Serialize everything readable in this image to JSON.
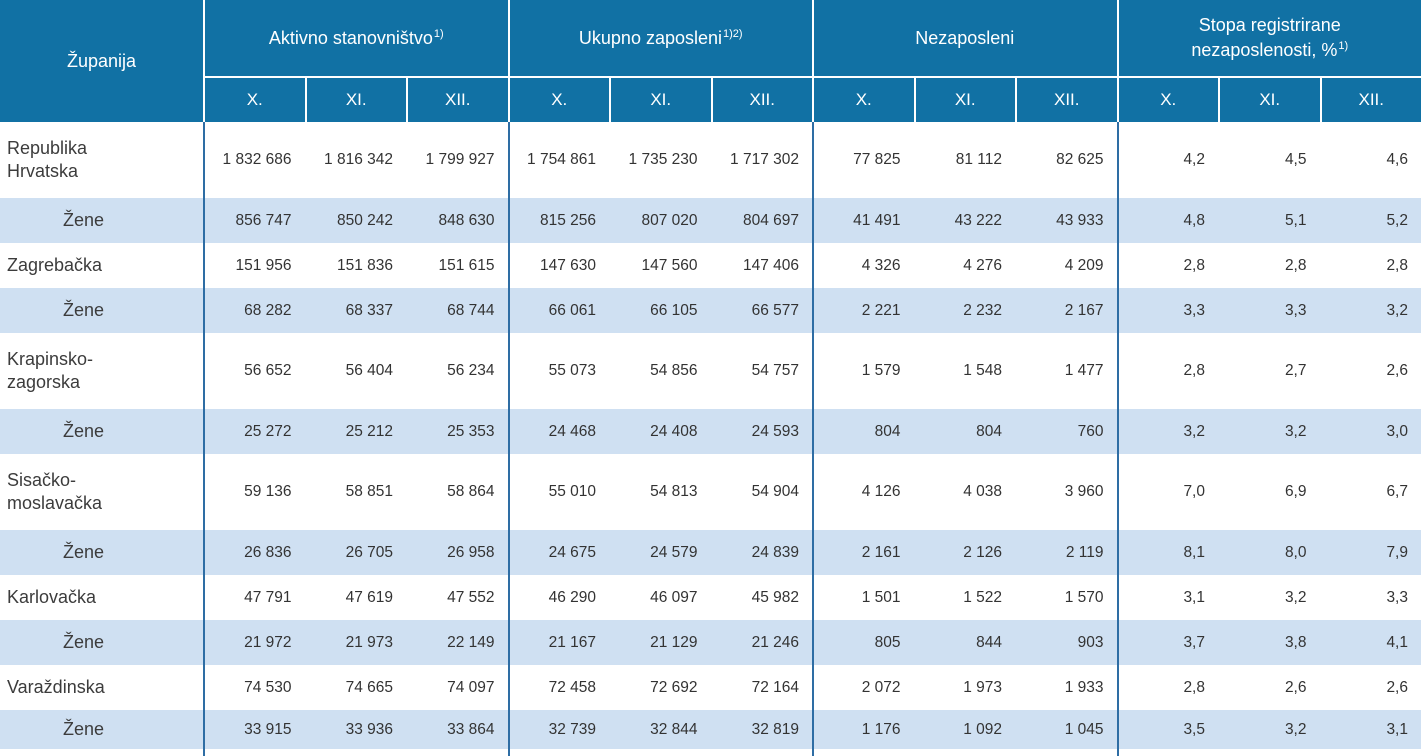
{
  "colors": {
    "header_blue": "#1171a4",
    "highlight_row_blue": "#cfe0f2",
    "grid_line_blue": "#2e6da4",
    "header_text": "#ffffff",
    "body_text": "#3c3c3c"
  },
  "table": {
    "corner_label": "Županija",
    "column_groups": [
      {
        "label": "Aktivno stanovništvo",
        "sup": "1)"
      },
      {
        "label": "Ukupno zaposleni",
        "sup": "1)2)"
      },
      {
        "label": "Nezaposleni",
        "sup": ""
      },
      {
        "label": "Stopa registrirane nezaposlenosti, %",
        "sup": "1)"
      }
    ],
    "month_headers": [
      "X.",
      "XI.",
      "XII.",
      "X.",
      "XI.",
      "XII.",
      "X.",
      "XI.",
      "XII.",
      "X.",
      "XI.",
      "XII."
    ],
    "rows": [
      {
        "label_lines": [
          "Republika",
          "Hrvatska"
        ],
        "indent": false,
        "values": [
          "1 832 686",
          "1 816 342",
          "1 799 927",
          "1 754 861",
          "1 735 230",
          "1 717 302",
          "77 825",
          "81 112",
          "82 625",
          "4,2",
          "4,5",
          "4,6"
        ]
      },
      {
        "label_lines": [
          "Žene"
        ],
        "indent": true,
        "values": [
          "856 747",
          "850 242",
          "848 630",
          "815 256",
          "807 020",
          "804 697",
          "41 491",
          "43 222",
          "43 933",
          "4,8",
          "5,1",
          "5,2"
        ]
      },
      {
        "label_lines": [
          "Zagrebačka"
        ],
        "indent": false,
        "values": [
          "151 956",
          "151 836",
          "151 615",
          "147 630",
          "147 560",
          "147 406",
          "4 326",
          "4 276",
          "4 209",
          "2,8",
          "2,8",
          "2,8"
        ]
      },
      {
        "label_lines": [
          "Žene"
        ],
        "indent": true,
        "values": [
          "68 282",
          "68 337",
          "68 744",
          "66 061",
          "66 105",
          "66 577",
          "2 221",
          "2 232",
          "2 167",
          "3,3",
          "3,3",
          "3,2"
        ]
      },
      {
        "label_lines": [
          "Krapinsko-",
          "zagorska"
        ],
        "indent": false,
        "values": [
          "56 652",
          "56 404",
          "56 234",
          "55 073",
          "54 856",
          "54 757",
          "1 579",
          "1 548",
          "1 477",
          "2,8",
          "2,7",
          "2,6"
        ]
      },
      {
        "label_lines": [
          "Žene"
        ],
        "indent": true,
        "values": [
          "25 272",
          "25 212",
          "25 353",
          "24 468",
          "24 408",
          "24 593",
          "804",
          "804",
          "760",
          "3,2",
          "3,2",
          "3,0"
        ]
      },
      {
        "label_lines": [
          "Sisačko-",
          "moslavačka"
        ],
        "indent": false,
        "values": [
          "59 136",
          "58 851",
          "58 864",
          "55 010",
          "54 813",
          "54 904",
          "4 126",
          "4 038",
          "3 960",
          "7,0",
          "6,9",
          "6,7"
        ]
      },
      {
        "label_lines": [
          "Žene"
        ],
        "indent": true,
        "values": [
          "26 836",
          "26 705",
          "26 958",
          "24 675",
          "24 579",
          "24 839",
          "2 161",
          "2 126",
          "2 119",
          "8,1",
          "8,0",
          "7,9"
        ]
      },
      {
        "label_lines": [
          "Karlovačka"
        ],
        "indent": false,
        "values": [
          "47 791",
          "47 619",
          "47 552",
          "46 290",
          "46 097",
          "45 982",
          "1 501",
          "1 522",
          "1 570",
          "3,1",
          "3,2",
          "3,3"
        ]
      },
      {
        "label_lines": [
          "Žene"
        ],
        "indent": true,
        "values": [
          "21 972",
          "21 973",
          "22 149",
          "21 167",
          "21 129",
          "21 246",
          "805",
          "844",
          "903",
          "3,7",
          "3,8",
          "4,1"
        ]
      },
      {
        "label_lines": [
          "Varaždinska"
        ],
        "indent": false,
        "values": [
          "74 530",
          "74 665",
          "74 097",
          "72 458",
          "72 692",
          "72 164",
          "2 072",
          "1 973",
          "1 933",
          "2,8",
          "2,6",
          "2,6"
        ]
      },
      {
        "label_lines": [
          "Žene"
        ],
        "indent": true,
        "values": [
          "33 915",
          "33 936",
          "33 864",
          "32 739",
          "32 844",
          "32 819",
          "1 176",
          "1 092",
          "1 045",
          "3,5",
          "3,2",
          "3,1"
        ]
      }
    ]
  }
}
